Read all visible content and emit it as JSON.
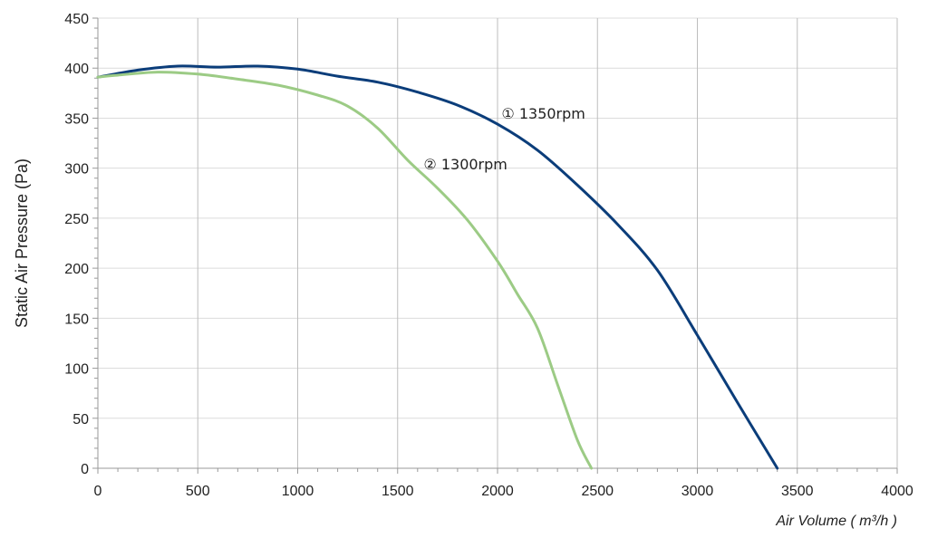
{
  "chart_data": {
    "type": "line",
    "title": "",
    "xlabel": "Air Volume ( m³/h )",
    "ylabel": "Static Air Pressure  (Pa)",
    "xlim": [
      0,
      4000
    ],
    "ylim": [
      0,
      450
    ],
    "xticks": [
      0,
      500,
      1000,
      1500,
      2000,
      2500,
      3000,
      3500,
      4000
    ],
    "yticks": [
      0,
      50,
      100,
      150,
      200,
      250,
      300,
      350,
      400,
      450
    ],
    "x_tick_labels": [
      "0",
      "500",
      "1000",
      "1500",
      "2000",
      "2500",
      "3000",
      "3500",
      "4000"
    ],
    "y_tick_labels": [
      "0",
      "50",
      "100",
      "150",
      "200",
      "250",
      "300",
      "350",
      "400",
      "450"
    ],
    "grid": true,
    "series": [
      {
        "name": "① 1350rpm",
        "color": "#0b3d7a",
        "x": [
          0,
          200,
          400,
          600,
          800,
          1000,
          1200,
          1400,
          1600,
          1800,
          2000,
          2200,
          2400,
          2600,
          2800,
          3000,
          3200,
          3400
        ],
        "y": [
          391,
          398,
          402,
          401,
          402,
          399,
          392,
          386,
          376,
          363,
          344,
          318,
          283,
          244,
          198,
          133,
          66,
          0
        ]
      },
      {
        "name": "② 1300rpm",
        "color": "#9ccb85",
        "x": [
          0,
          100,
          300,
          500,
          700,
          900,
          1100,
          1250,
          1400,
          1550,
          1700,
          1850,
          2000,
          2100,
          2200,
          2300,
          2400,
          2470
        ],
        "y": [
          391,
          393,
          396,
          394,
          389,
          383,
          373,
          362,
          340,
          308,
          280,
          248,
          207,
          174,
          140,
          84,
          28,
          0
        ]
      }
    ],
    "annotations": [
      {
        "text": "① 1350rpm",
        "x": 2020,
        "y": 355
      },
      {
        "text": "② 1300rpm",
        "x": 1630,
        "y": 304
      }
    ]
  }
}
